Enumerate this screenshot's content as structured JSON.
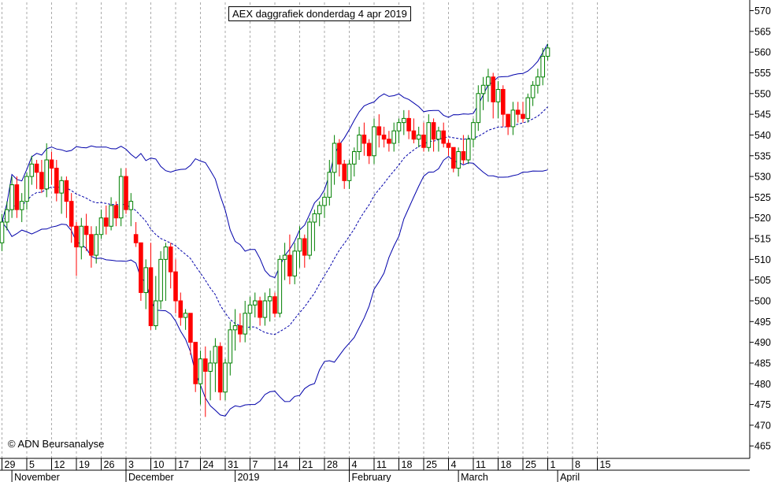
{
  "chart_data": {
    "type": "candlestick",
    "title": "AEX daggrafiek donderdag 4 apr 2019",
    "copyright": "© ADN Beursanalyse",
    "ylim": [
      462,
      572
    ],
    "y_ticks": [
      465,
      470,
      475,
      480,
      485,
      490,
      495,
      500,
      505,
      510,
      515,
      520,
      525,
      530,
      535,
      540,
      545,
      550,
      555,
      560,
      565,
      570
    ],
    "x_tick_labels": [
      {
        "idx": 0,
        "label": "29"
      },
      {
        "idx": 5,
        "label": "5"
      },
      {
        "idx": 10,
        "label": "12"
      },
      {
        "idx": 15,
        "label": "19"
      },
      {
        "idx": 20,
        "label": "26"
      },
      {
        "idx": 25,
        "label": "3"
      },
      {
        "idx": 30,
        "label": "10"
      },
      {
        "idx": 35,
        "label": "17"
      },
      {
        "idx": 40,
        "label": "24"
      },
      {
        "idx": 45,
        "label": "31"
      },
      {
        "idx": 50,
        "label": "7"
      },
      {
        "idx": 55,
        "label": "14"
      },
      {
        "idx": 60,
        "label": "21"
      },
      {
        "idx": 65,
        "label": "28"
      },
      {
        "idx": 70,
        "label": "4"
      },
      {
        "idx": 75,
        "label": "11"
      },
      {
        "idx": 80,
        "label": "18"
      },
      {
        "idx": 85,
        "label": "25"
      },
      {
        "idx": 90,
        "label": "4"
      },
      {
        "idx": 95,
        "label": "11"
      },
      {
        "idx": 100,
        "label": "18"
      },
      {
        "idx": 105,
        "label": "25"
      },
      {
        "idx": 110,
        "label": "1"
      },
      {
        "idx": 115,
        "label": "8"
      },
      {
        "idx": 120,
        "label": "15"
      }
    ],
    "month_labels": [
      {
        "idx": 2,
        "label": "November"
      },
      {
        "idx": 25,
        "label": "December"
      },
      {
        "idx": 47,
        "label": "2019"
      },
      {
        "idx": 70,
        "label": "February"
      },
      {
        "idx": 92,
        "label": "March"
      },
      {
        "idx": 112,
        "label": "April"
      }
    ],
    "colors": {
      "up": "#008000",
      "down": "#ff0000",
      "band": "#0000aa",
      "grid": "#aaaaaa",
      "axis": "#000000"
    },
    "candles": [
      [
        514,
        521,
        512,
        519
      ],
      [
        519,
        524,
        517,
        522
      ],
      [
        522,
        530,
        520,
        528
      ],
      [
        528,
        530,
        520,
        522
      ],
      [
        522,
        526,
        519,
        524
      ],
      [
        524,
        531,
        522,
        530
      ],
      [
        530,
        535,
        528,
        533
      ],
      [
        533,
        534,
        527,
        531
      ],
      [
        531,
        534,
        526,
        527
      ],
      [
        527,
        538,
        525,
        534
      ],
      [
        534,
        536,
        528,
        532
      ],
      [
        532,
        534,
        524,
        526
      ],
      [
        526,
        530,
        521,
        529
      ],
      [
        529,
        530,
        520,
        524
      ],
      [
        524,
        526,
        514,
        518
      ],
      [
        518,
        519,
        506,
        513
      ],
      [
        513,
        520,
        510,
        518
      ],
      [
        518,
        521,
        512,
        516
      ],
      [
        516,
        518,
        508,
        511
      ],
      [
        511,
        518,
        509,
        516
      ],
      [
        516,
        522,
        515,
        520
      ],
      [
        520,
        523,
        516,
        518
      ],
      [
        518,
        525,
        517,
        523
      ],
      [
        523,
        524,
        518,
        520
      ],
      [
        520,
        532,
        518,
        530
      ],
      [
        530,
        532,
        521,
        522
      ],
      [
        522,
        526,
        518,
        524
      ],
      [
        516,
        519,
        513,
        514
      ],
      [
        514,
        514,
        500,
        502
      ],
      [
        502,
        510,
        498,
        508
      ],
      [
        508,
        514,
        493,
        494
      ],
      [
        494,
        506,
        493,
        500
      ],
      [
        500,
        512,
        498,
        510
      ],
      [
        510,
        514,
        500,
        513
      ],
      [
        513,
        514,
        503,
        507
      ],
      [
        507,
        510,
        497,
        500
      ],
      [
        500,
        502,
        494,
        496
      ],
      [
        496,
        498,
        493,
        497
      ],
      [
        497,
        497,
        487,
        490
      ],
      [
        490,
        490,
        478,
        480
      ],
      [
        480,
        488,
        475,
        486
      ],
      [
        486,
        489,
        472,
        483
      ],
      [
        483,
        488,
        476,
        485
      ],
      [
        485,
        491,
        478,
        489
      ],
      [
        489,
        490,
        476,
        478
      ],
      [
        478,
        486,
        476,
        485
      ],
      [
        485,
        495,
        482,
        493
      ],
      [
        493,
        498,
        488,
        494
      ],
      [
        494,
        497,
        490,
        492
      ],
      [
        492,
        500,
        490,
        497
      ],
      [
        497,
        501,
        493,
        499
      ],
      [
        499,
        502,
        496,
        500
      ],
      [
        500,
        501,
        494,
        496
      ],
      [
        496,
        502,
        494,
        500
      ],
      [
        500,
        503,
        495,
        501
      ],
      [
        501,
        502,
        496,
        497
      ],
      [
        497,
        511,
        496,
        510
      ],
      [
        510,
        514,
        505,
        511
      ],
      [
        511,
        516,
        504,
        506
      ],
      [
        506,
        514,
        504,
        512
      ],
      [
        512,
        518,
        508,
        515
      ],
      [
        515,
        516,
        508,
        511
      ],
      [
        511,
        520,
        510,
        519
      ],
      [
        519,
        522,
        512,
        521
      ],
      [
        521,
        524,
        518,
        523
      ],
      [
        523,
        526,
        520,
        525
      ],
      [
        525,
        534,
        523,
        531
      ],
      [
        531,
        540,
        528,
        538
      ],
      [
        538,
        539,
        530,
        533
      ],
      [
        533,
        534,
        527,
        529
      ],
      [
        529,
        534,
        527,
        533
      ],
      [
        533,
        537,
        530,
        536
      ],
      [
        536,
        542,
        534,
        540
      ],
      [
        540,
        543,
        535,
        538
      ],
      [
        538,
        539,
        533,
        535
      ],
      [
        535,
        544,
        533,
        542
      ],
      [
        542,
        545,
        537,
        540
      ],
      [
        540,
        542,
        537,
        539
      ],
      [
        539,
        541,
        536,
        538
      ],
      [
        538,
        543,
        536,
        541
      ],
      [
        541,
        544,
        538,
        543
      ],
      [
        543,
        546,
        540,
        544
      ],
      [
        544,
        546,
        539,
        541
      ],
      [
        541,
        544,
        538,
        539
      ],
      [
        539,
        542,
        537,
        540
      ],
      [
        540,
        543,
        536,
        537
      ],
      [
        537,
        545,
        536,
        543
      ],
      [
        543,
        544,
        536,
        539
      ],
      [
        539,
        542,
        536,
        541
      ],
      [
        541,
        543,
        537,
        538
      ],
      [
        538,
        539,
        535,
        537
      ],
      [
        537,
        537,
        531,
        532
      ],
      [
        532,
        537,
        530,
        536
      ],
      [
        536,
        540,
        533,
        534
      ],
      [
        534,
        540,
        533,
        539
      ],
      [
        539,
        544,
        537,
        543
      ],
      [
        543,
        552,
        541,
        550
      ],
      [
        550,
        554,
        546,
        552
      ],
      [
        552,
        556,
        548,
        554
      ],
      [
        554,
        555,
        544,
        548
      ],
      [
        548,
        553,
        544,
        551
      ],
      [
        551,
        552,
        542,
        545
      ],
      [
        545,
        545,
        540,
        542
      ],
      [
        542,
        548,
        540,
        546
      ],
      [
        546,
        548,
        543,
        545
      ],
      [
        545,
        548,
        543,
        544
      ],
      [
        544,
        550,
        543,
        549
      ],
      [
        549,
        553,
        547,
        552
      ],
      [
        552,
        556,
        550,
        554
      ],
      [
        554,
        561,
        552,
        559
      ],
      [
        559,
        562,
        558,
        561
      ]
    ]
  }
}
